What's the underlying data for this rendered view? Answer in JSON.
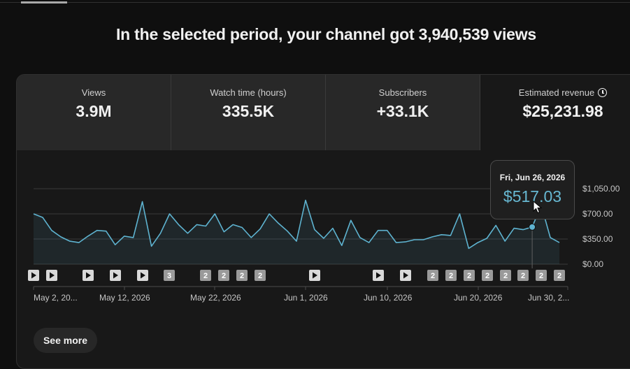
{
  "headline": "In the selected period, your channel got 3,940,539 views",
  "metrics": [
    {
      "label": "Views",
      "value": "3.9M"
    },
    {
      "label": "Watch time (hours)",
      "value": "335.5K"
    },
    {
      "label": "Subscribers",
      "value": "+33.1K"
    },
    {
      "label": "Estimated revenue",
      "value": "$25,231.98"
    }
  ],
  "tooltip": {
    "date": "Fri, Jun 26, 2026",
    "value": "$517.03"
  },
  "see_more_label": "See more",
  "colors": {
    "line": "#5eb3d0",
    "accent": "#67b8d2",
    "background": "#0f0f0f",
    "card": "#181818"
  },
  "chart_data": {
    "type": "area",
    "ylabel": "",
    "ylim": [
      0,
      1050
    ],
    "y_ticks": [
      "$1,050.00",
      "$700.00",
      "$350.00",
      "$0.00"
    ],
    "x_tick_labels": [
      "May 2, 20...",
      "May 12, 2026",
      "May 22, 2026",
      "Jun 1, 2026",
      "Jun 10, 2026",
      "Jun 20, 2026",
      "Jun 30, 2..."
    ],
    "series": [
      {
        "values": [
          700,
          650,
          470,
          380,
          320,
          300,
          390,
          470,
          460,
          270,
          390,
          370,
          870,
          250,
          430,
          700,
          550,
          430,
          550,
          530,
          700,
          450,
          550,
          510,
          370,
          490,
          700,
          570,
          460,
          320,
          890,
          480,
          360,
          500,
          260,
          610,
          370,
          300,
          470,
          470,
          300,
          310,
          340,
          340,
          380,
          410,
          400,
          700,
          220,
          300,
          360,
          540,
          320,
          500,
          480,
          517,
          820,
          370,
          300
        ]
      }
    ],
    "hover_index": 55,
    "event_markers": [
      "play",
      "play",
      "play",
      "play",
      "play",
      "3",
      "2",
      "2",
      "2",
      "2",
      "play",
      "play",
      "play",
      "2",
      "2",
      "2",
      "2",
      "2",
      "2",
      "2",
      "2"
    ]
  }
}
